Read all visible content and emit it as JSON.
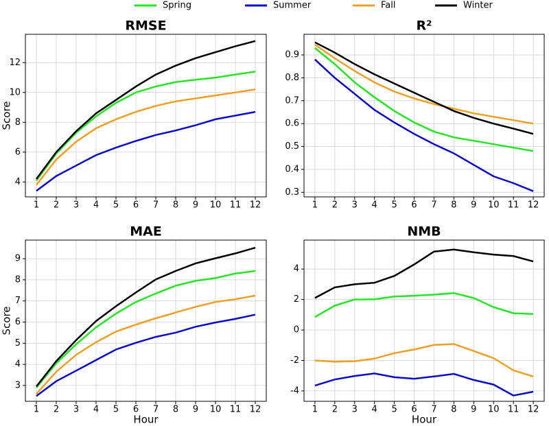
{
  "chart_data": [
    {
      "type": "line",
      "title": "RMSE",
      "ylabel": "Score",
      "x": [
        1,
        2,
        3,
        4,
        5,
        6,
        7,
        8,
        9,
        10,
        11,
        12
      ],
      "xlim": [
        0.45,
        12.55
      ],
      "xticks": [
        1,
        2,
        3,
        4,
        5,
        6,
        7,
        8,
        9,
        10,
        11,
        12
      ],
      "ylim": [
        3.0,
        13.9
      ],
      "yticks": [
        4,
        6,
        8,
        10,
        12
      ],
      "grid": true,
      "series": [
        {
          "name": "Spring",
          "color": "#22e822",
          "values": [
            4.1,
            5.9,
            7.3,
            8.4,
            9.3,
            10.0,
            10.4,
            10.7,
            10.85,
            11.0,
            11.2,
            11.4
          ]
        },
        {
          "name": "Summer",
          "color": "#0b0bcc",
          "values": [
            3.4,
            4.4,
            5.1,
            5.8,
            6.3,
            6.75,
            7.15,
            7.45,
            7.8,
            8.2,
            8.45,
            8.7
          ]
        },
        {
          "name": "Fall",
          "color": "#f0a020",
          "values": [
            3.8,
            5.5,
            6.7,
            7.6,
            8.2,
            8.7,
            9.1,
            9.4,
            9.6,
            9.8,
            10.0,
            10.2
          ]
        },
        {
          "name": "Winter",
          "color": "#000000",
          "values": [
            4.2,
            6.0,
            7.4,
            8.6,
            9.5,
            10.4,
            11.2,
            11.8,
            12.3,
            12.7,
            13.1,
            13.45
          ]
        }
      ]
    },
    {
      "type": "line",
      "title": "R²",
      "x": [
        1,
        2,
        3,
        4,
        5,
        6,
        7,
        8,
        9,
        10,
        11,
        12
      ],
      "xlim": [
        0.45,
        12.55
      ],
      "xticks": [
        1,
        2,
        3,
        4,
        5,
        6,
        7,
        8,
        9,
        10,
        11,
        12
      ],
      "ylim": [
        0.28,
        0.99
      ],
      "yticks": [
        0.3,
        0.4,
        0.5,
        0.6,
        0.7,
        0.8,
        0.9
      ],
      "grid": true,
      "series": [
        {
          "color": "#22e822",
          "values": [
            0.93,
            0.86,
            0.78,
            0.715,
            0.655,
            0.605,
            0.565,
            0.54,
            0.525,
            0.51,
            0.495,
            0.48
          ]
        },
        {
          "color": "#0b0bcc",
          "values": [
            0.88,
            0.8,
            0.73,
            0.66,
            0.605,
            0.555,
            0.51,
            0.47,
            0.42,
            0.37,
            0.34,
            0.305
          ]
        },
        {
          "color": "#f0a020",
          "values": [
            0.945,
            0.885,
            0.83,
            0.78,
            0.74,
            0.71,
            0.685,
            0.665,
            0.645,
            0.63,
            0.615,
            0.6
          ]
        },
        {
          "color": "#000000",
          "values": [
            0.955,
            0.91,
            0.86,
            0.815,
            0.775,
            0.735,
            0.695,
            0.655,
            0.625,
            0.6,
            0.578,
            0.555
          ]
        }
      ]
    },
    {
      "type": "line",
      "title": "MAE",
      "ylabel": "Score",
      "xlabel": "Hour",
      "x": [
        1,
        2,
        3,
        4,
        5,
        6,
        7,
        8,
        9,
        10,
        11,
        12
      ],
      "xlim": [
        0.45,
        12.55
      ],
      "xticks": [
        1,
        2,
        3,
        4,
        5,
        6,
        7,
        8,
        9,
        10,
        11,
        12
      ],
      "ylim": [
        2.25,
        9.88
      ],
      "yticks": [
        3,
        4,
        5,
        6,
        7,
        8,
        9
      ],
      "grid": true,
      "series": [
        {
          "color": "#22e822",
          "values": [
            2.9,
            4.05,
            4.95,
            5.75,
            6.4,
            6.95,
            7.35,
            7.72,
            7.95,
            8.08,
            8.3,
            8.42
          ]
        },
        {
          "color": "#0b0bcc",
          "values": [
            2.5,
            3.2,
            3.7,
            4.2,
            4.7,
            5.02,
            5.3,
            5.5,
            5.78,
            5.98,
            6.15,
            6.35
          ]
        },
        {
          "color": "#f0a020",
          "values": [
            2.6,
            3.65,
            4.45,
            5.05,
            5.55,
            5.88,
            6.18,
            6.45,
            6.72,
            6.95,
            7.08,
            7.25
          ]
        },
        {
          "color": "#000000",
          "values": [
            2.95,
            4.15,
            5.15,
            6.05,
            6.75,
            7.4,
            8.02,
            8.42,
            8.78,
            9.02,
            9.25,
            9.52
          ]
        }
      ]
    },
    {
      "type": "line",
      "title": "NMB",
      "xlabel": "Hour",
      "x": [
        1,
        2,
        3,
        4,
        5,
        6,
        7,
        8,
        9,
        10,
        11,
        12
      ],
      "xlim": [
        0.45,
        12.55
      ],
      "xticks": [
        1,
        2,
        3,
        4,
        5,
        6,
        7,
        8,
        9,
        10,
        11,
        12
      ],
      "ylim": [
        -4.68,
        5.9
      ],
      "yticks": [
        -4,
        -2,
        0,
        2,
        4
      ],
      "grid": true,
      "series": [
        {
          "color": "#22e822",
          "values": [
            0.85,
            1.6,
            2.0,
            2.02,
            2.2,
            2.25,
            2.32,
            2.42,
            2.1,
            1.5,
            1.1,
            1.05
          ]
        },
        {
          "color": "#0b0bcc",
          "values": [
            -3.65,
            -3.25,
            -3.02,
            -2.85,
            -3.1,
            -3.2,
            -3.05,
            -2.88,
            -3.28,
            -3.58,
            -4.3,
            -4.05
          ]
        },
        {
          "color": "#f0a020",
          "values": [
            -2.0,
            -2.08,
            -2.05,
            -1.88,
            -1.52,
            -1.28,
            -0.98,
            -0.92,
            -1.38,
            -1.85,
            -2.65,
            -3.05
          ]
        },
        {
          "color": "#000000",
          "values": [
            2.1,
            2.8,
            3.0,
            3.1,
            3.55,
            4.3,
            5.15,
            5.28,
            5.1,
            4.95,
            4.85,
            4.5
          ]
        }
      ]
    }
  ]
}
